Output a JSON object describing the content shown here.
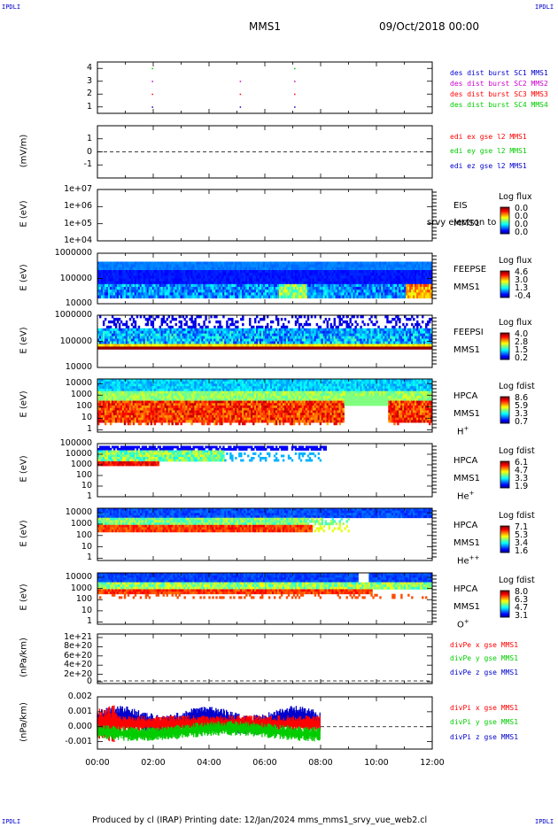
{
  "corners": {
    "tl": "IPDLI",
    "tr": "IPDLI",
    "bl": "IPDLI",
    "br": "IPDLI"
  },
  "header": {
    "mission": "MMS1",
    "date": "09/Oct/2018 00:00"
  },
  "footer": {
    "text": "Produced by cl (IRAP)   Printing date: 12/Jan/2024   mms_mms1_srvy_vue_web2.cl"
  },
  "x_ticks": [
    "00:00",
    "02:00",
    "04:00",
    "06:00",
    "08:00",
    "10:00",
    "12:00"
  ],
  "colors": {
    "red": "#ff0000",
    "green": "#00cc00",
    "blue": "#0000cc",
    "magenta": "#cc00cc"
  },
  "chart_data": [
    {
      "id": "burst",
      "type": "scatter",
      "ylim": [
        0.5,
        4.5
      ],
      "yticks": [
        "4",
        "3",
        "2",
        "1"
      ],
      "legend": [
        {
          "text": "des dist burst SC1 MMS1",
          "color": "#0000cc"
        },
        {
          "text": "des dist burst SC2 MMS2",
          "color": "#cc00cc"
        },
        {
          "text": "des dist burst SC3 MMS3",
          "color": "#ff0000"
        },
        {
          "text": "des dist burst SC4 MMS4",
          "color": "#00cc00"
        }
      ],
      "points": [
        {
          "t": 1.95,
          "sc": 4
        },
        {
          "t": 7.05,
          "sc": 4
        },
        {
          "t": 1.95,
          "sc": 3
        },
        {
          "t": 5.1,
          "sc": 3
        },
        {
          "t": 7.05,
          "sc": 3
        },
        {
          "t": 1.95,
          "sc": 2
        },
        {
          "t": 5.1,
          "sc": 2
        },
        {
          "t": 7.05,
          "sc": 2
        },
        {
          "t": 1.95,
          "sc": 1
        },
        {
          "t": 5.1,
          "sc": 1
        },
        {
          "t": 7.05,
          "sc": 1
        }
      ]
    },
    {
      "id": "edi",
      "type": "line",
      "ylabel": "(mV/m)",
      "ylim": [
        -2,
        2
      ],
      "yticks": [
        "1",
        "0",
        "-1"
      ],
      "legend": [
        {
          "text": "edi ex gse l2 MMS1",
          "color": "#ff0000"
        },
        {
          "text": "edi ey gse l2 MMS1",
          "color": "#00cc00"
        },
        {
          "text": "edi ez gse l2 MMS1",
          "color": "#0000cc"
        }
      ]
    },
    {
      "id": "eis",
      "type": "heatmap",
      "ylabel": "E (eV)",
      "yticks": [
        "1e+07",
        "1e+06",
        "1e+05",
        "1e+04"
      ],
      "inst": [
        "EIS",
        "MMS1"
      ],
      "extra": "srvy electron to",
      "cbar_title": "Log flux",
      "cbar_values": [
        "0.0",
        "0.0",
        "0.0",
        "0.0"
      ]
    },
    {
      "id": "feepse",
      "type": "heatmap",
      "ylabel": "E (eV)",
      "yticks": [
        "1000000",
        "100000",
        "10000"
      ],
      "inst": [
        "FEEPSE",
        "MMS1"
      ],
      "cbar_title": "Log flux",
      "cbar_values": [
        "4.6",
        "3.0",
        "1.3",
        "-0.4"
      ]
    },
    {
      "id": "feepsi",
      "type": "heatmap",
      "ylabel": "E (eV)",
      "yticks": [
        "1000000",
        "100000",
        "10000"
      ],
      "inst": [
        "FEEPSI",
        "MMS1"
      ],
      "cbar_title": "Log flux",
      "cbar_values": [
        "4.0",
        "2.8",
        "1.5",
        "0.2"
      ]
    },
    {
      "id": "hpca_h",
      "type": "heatmap",
      "ylabel": "E (eV)",
      "yticks": [
        "10000",
        "1000",
        "100",
        "10",
        "1"
      ],
      "inst": [
        "HPCA",
        "MMS1"
      ],
      "species": "H",
      "charge": "+",
      "cbar_title": "Log fdist",
      "cbar_values": [
        "8.6",
        "5.9",
        "3.3",
        "0.7"
      ]
    },
    {
      "id": "hpca_he",
      "type": "heatmap",
      "ylabel": "E (eV)",
      "yticks": [
        "100000",
        "10000",
        "1000",
        "100",
        "10",
        "1"
      ],
      "inst": [
        "HPCA",
        "MMS1"
      ],
      "species": "He",
      "charge": "+",
      "cbar_title": "Log fdist",
      "cbar_values": [
        "6.1",
        "4.7",
        "3.3",
        "1.9"
      ]
    },
    {
      "id": "hpca_hepp",
      "type": "heatmap",
      "ylabel": "E (eV)",
      "yticks": [
        "10000",
        "1000",
        "100",
        "10",
        "1"
      ],
      "inst": [
        "HPCA",
        "MMS1"
      ],
      "species": "He",
      "charge": "++",
      "cbar_title": "Log fdist",
      "cbar_values": [
        "7.1",
        "5.3",
        "3.4",
        "1.6"
      ]
    },
    {
      "id": "hpca_o",
      "type": "heatmap",
      "ylabel": "E (eV)",
      "yticks": [
        "10000",
        "1000",
        "100",
        "10",
        "1"
      ],
      "inst": [
        "HPCA",
        "MMS1"
      ],
      "species": "O",
      "charge": "+",
      "cbar_title": "Log fdist",
      "cbar_values": [
        "8.0",
        "6.3",
        "4.7",
        "3.1"
      ]
    },
    {
      "id": "divpe",
      "type": "line",
      "ylabel": "(nPa/km)",
      "yticks": [
        "1e+21",
        "8e+20",
        "6e+20",
        "4e+20",
        "2e+20",
        "0"
      ],
      "legend": [
        {
          "text": "divPe x gse MMS1",
          "color": "#ff0000"
        },
        {
          "text": "divPe y gse MMS1",
          "color": "#00cc00"
        },
        {
          "text": "divPe z gse MMS1",
          "color": "#0000cc"
        }
      ]
    },
    {
      "id": "divpi",
      "type": "line",
      "ylabel": "(nPa/km)",
      "ylim": [
        -0.0015,
        0.002
      ],
      "yticks": [
        "0.002",
        "0.001",
        "0.000",
        "-0.001"
      ],
      "legend": [
        {
          "text": "divPi x gse MMS1",
          "color": "#ff0000"
        },
        {
          "text": "divPi y gse MMS1",
          "color": "#00cc00"
        },
        {
          "text": "divPi z gse MMS1",
          "color": "#0000cc"
        }
      ]
    }
  ]
}
